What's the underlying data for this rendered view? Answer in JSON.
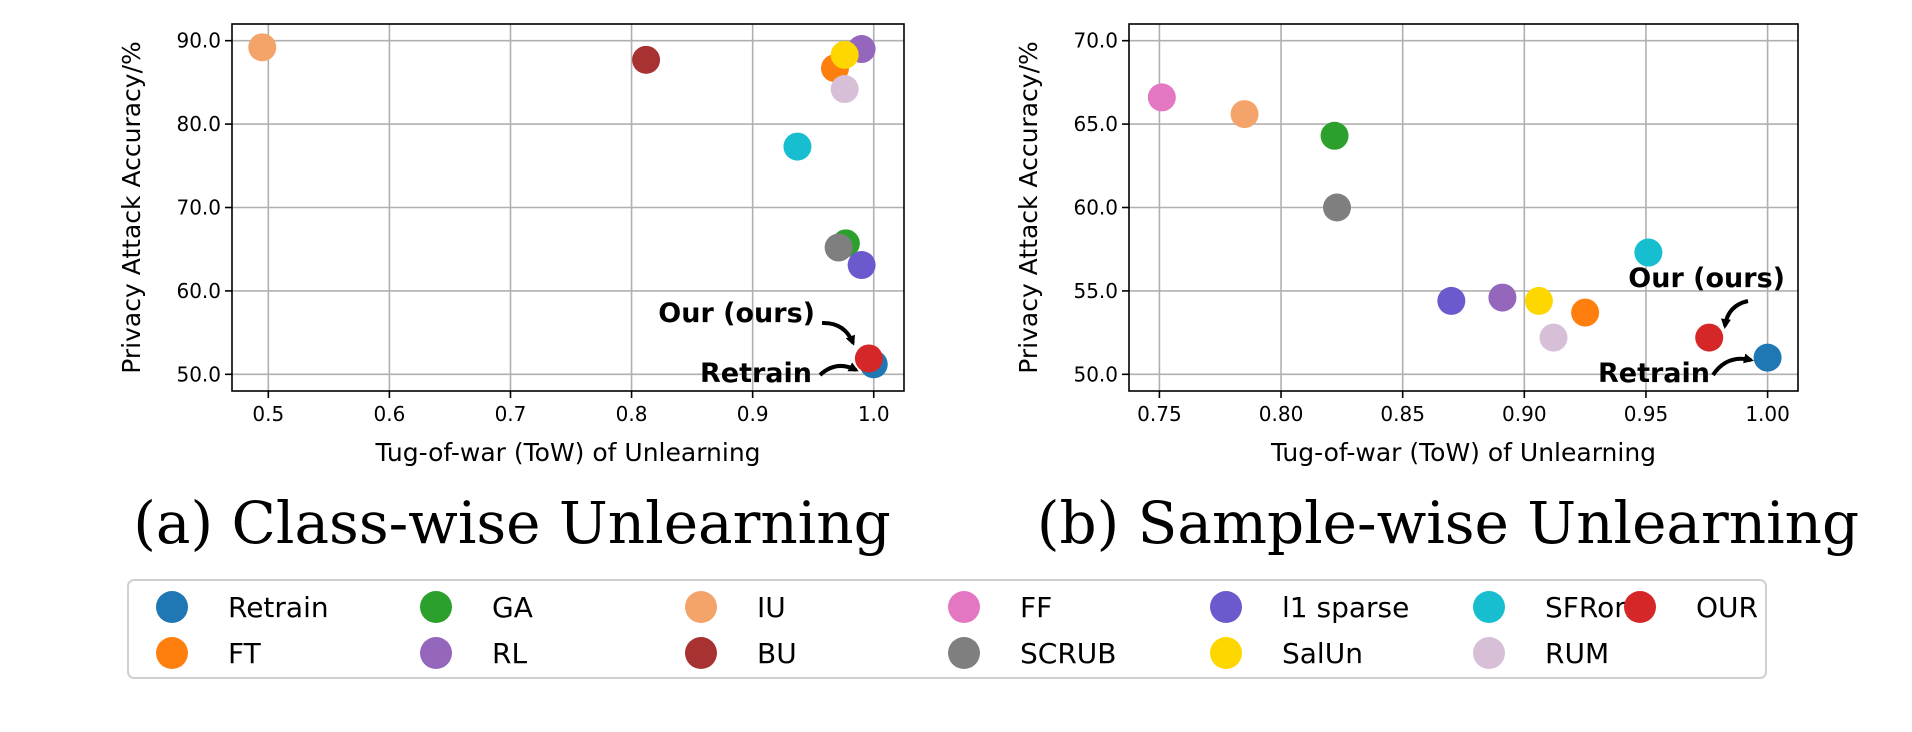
{
  "legend": [
    {
      "name": "Retrain",
      "color": "#1f77b4"
    },
    {
      "name": "FT",
      "color": "#ff7f0e"
    },
    {
      "name": "GA",
      "color": "#2ca02c"
    },
    {
      "name": "RL",
      "color": "#9467bd"
    },
    {
      "name": "IU",
      "color": "#f4a46a"
    },
    {
      "name": "BU",
      "color": "#a83232"
    },
    {
      "name": "FF",
      "color": "#e377c2"
    },
    {
      "name": "SCRUB",
      "color": "#7f7f7f"
    },
    {
      "name": "l1 sparse",
      "color": "#6a5acd"
    },
    {
      "name": "SalUn",
      "color": "#ffd700"
    },
    {
      "name": "SFRon",
      "color": "#17becf"
    },
    {
      "name": "RUM",
      "color": "#d8bfd8"
    },
    {
      "name": "OUR",
      "color": "#d62728"
    }
  ],
  "chart_data": [
    {
      "type": "scatter",
      "caption": "(a) Class-wise Unlearning",
      "xlabel": "Tug-of-war (ToW) of Unlearning",
      "ylabel": "Privacy Attack Accuracy/%",
      "xlim": [
        0.47,
        1.025
      ],
      "ylim": [
        48.0,
        92.0
      ],
      "xticks": [
        0.5,
        0.6,
        0.7,
        0.8,
        0.9,
        1.0
      ],
      "xtick_labels": [
        "0.5",
        "0.6",
        "0.7",
        "0.8",
        "0.9",
        "1.0"
      ],
      "yticks": [
        50.0,
        60.0,
        70.0,
        80.0,
        90.0
      ],
      "ytick_labels": [
        "50.0",
        "60.0",
        "70.0",
        "80.0",
        "90.0"
      ],
      "grid": true,
      "points": [
        {
          "method": "IU",
          "x": 0.495,
          "y": 89.2
        },
        {
          "method": "BU",
          "x": 0.812,
          "y": 87.7
        },
        {
          "method": "FT",
          "x": 0.968,
          "y": 86.7
        },
        {
          "method": "RL",
          "x": 0.99,
          "y": 89.0
        },
        {
          "method": "SalUn",
          "x": 0.976,
          "y": 88.3
        },
        {
          "method": "RUM",
          "x": 0.976,
          "y": 84.2
        },
        {
          "method": "SFRon",
          "x": 0.937,
          "y": 77.3
        },
        {
          "method": "GA",
          "x": 0.977,
          "y": 65.7
        },
        {
          "method": "SCRUB",
          "x": 0.971,
          "y": 65.2
        },
        {
          "method": "l1 sparse",
          "x": 0.99,
          "y": 63.1
        },
        {
          "method": "Retrain",
          "x": 1.0,
          "y": 51.2
        },
        {
          "method": "OUR",
          "x": 0.996,
          "y": 51.9
        }
      ],
      "annotations": [
        {
          "text": "Our (ours)",
          "target_method": "OUR"
        },
        {
          "text": "Retrain",
          "target_method": "Retrain"
        }
      ]
    },
    {
      "type": "scatter",
      "caption": "(b) Sample-wise Unlearning",
      "xlabel": "Tug-of-war (ToW) of Unlearning",
      "ylabel": "Privacy Attack Accuracy/%",
      "xlim": [
        0.7375,
        1.0125
      ],
      "ylim": [
        49.0,
        71.0
      ],
      "xticks": [
        0.75,
        0.8,
        0.85,
        0.9,
        0.95,
        1.0
      ],
      "xtick_labels": [
        "0.75",
        "0.80",
        "0.85",
        "0.90",
        "0.95",
        "1.00"
      ],
      "yticks": [
        50.0,
        55.0,
        60.0,
        65.0,
        70.0
      ],
      "ytick_labels": [
        "50.0",
        "55.0",
        "60.0",
        "65.0",
        "70.0"
      ],
      "grid": true,
      "points": [
        {
          "method": "FF",
          "x": 0.751,
          "y": 66.6
        },
        {
          "method": "IU",
          "x": 0.785,
          "y": 65.6
        },
        {
          "method": "GA",
          "x": 0.822,
          "y": 64.3
        },
        {
          "method": "SCRUB",
          "x": 0.823,
          "y": 60.0
        },
        {
          "method": "l1 sparse",
          "x": 0.87,
          "y": 54.4
        },
        {
          "method": "RL",
          "x": 0.891,
          "y": 54.6
        },
        {
          "method": "SalUn",
          "x": 0.906,
          "y": 54.4
        },
        {
          "method": "RUM",
          "x": 0.912,
          "y": 52.2
        },
        {
          "method": "FT",
          "x": 0.925,
          "y": 53.7
        },
        {
          "method": "SFRon",
          "x": 0.951,
          "y": 57.3
        },
        {
          "method": "OUR",
          "x": 0.976,
          "y": 52.2
        },
        {
          "method": "Retrain",
          "x": 1.0,
          "y": 51.0
        }
      ],
      "annotations": [
        {
          "text": "Our (ours)",
          "target_method": "OUR"
        },
        {
          "text": "Retrain",
          "target_method": "Retrain"
        }
      ]
    }
  ]
}
